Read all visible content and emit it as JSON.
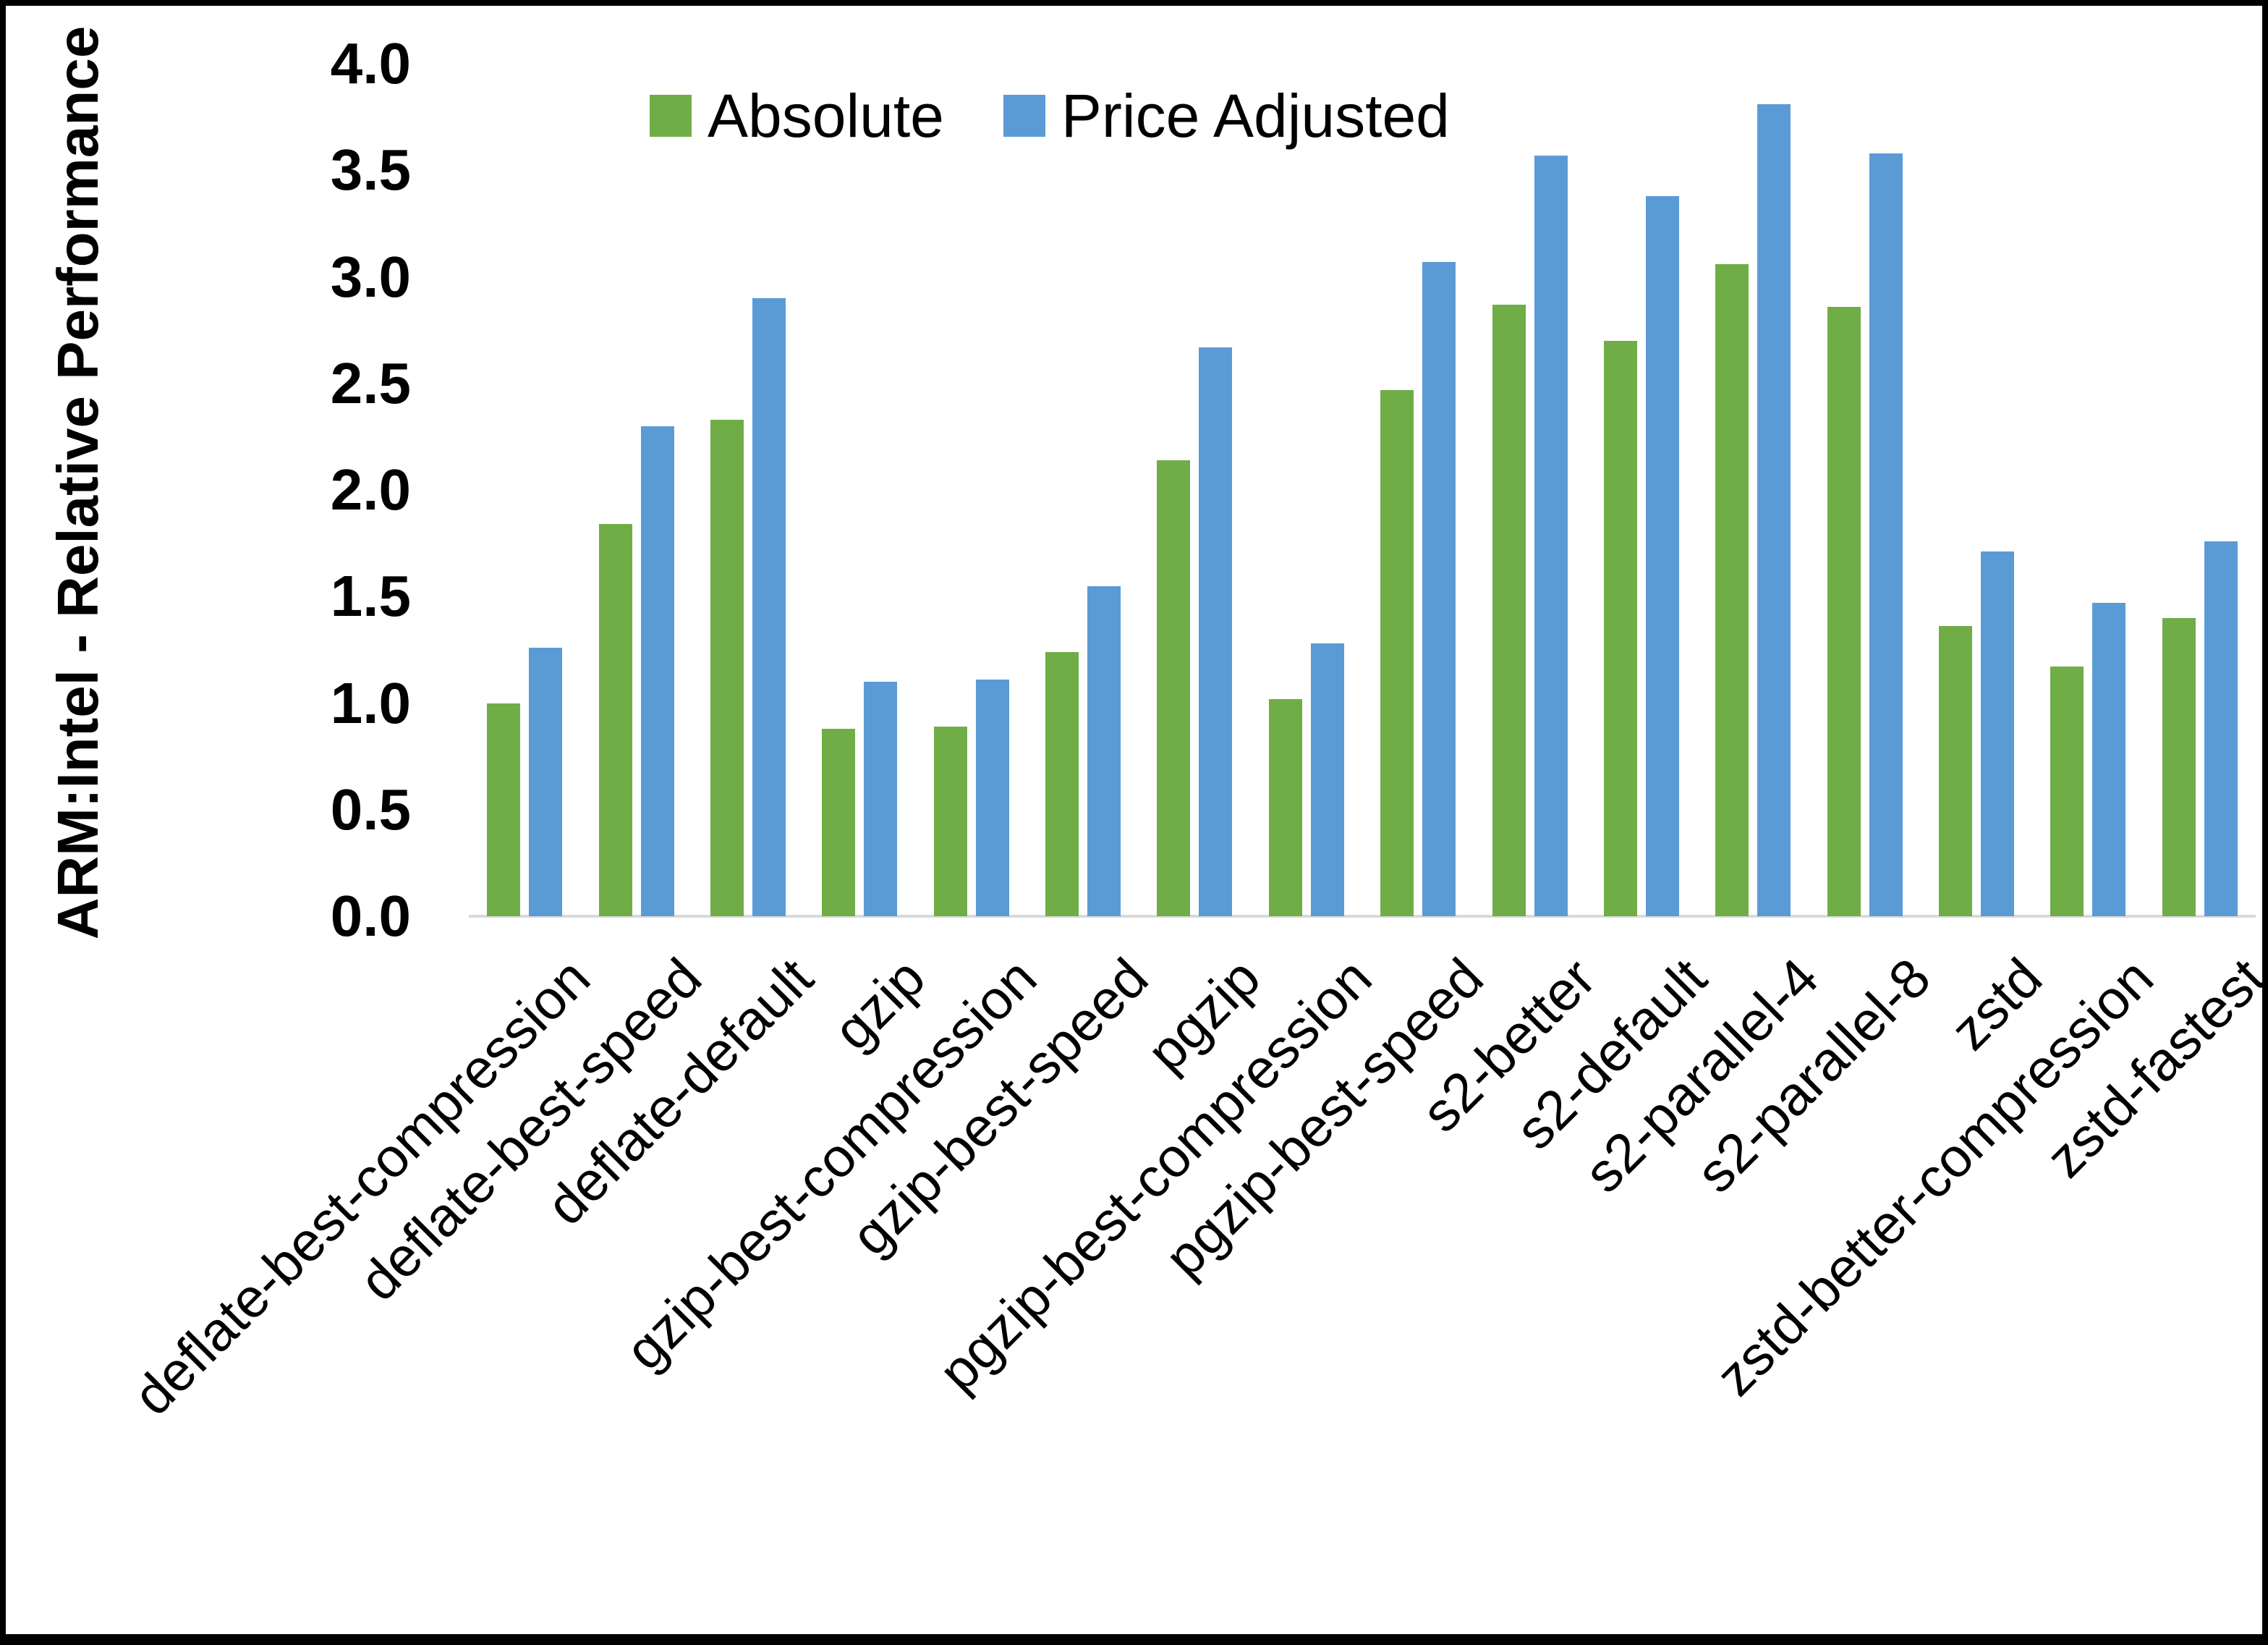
{
  "chart_data": {
    "type": "bar",
    "title": "",
    "ylabel": "ARM:Intel - Relative Performance",
    "xlabel": "",
    "ylim": [
      0.0,
      4.0
    ],
    "ytick_step": 0.5,
    "yticks": [
      "0.0",
      "0.5",
      "1.0",
      "1.5",
      "2.0",
      "2.5",
      "3.0",
      "3.5",
      "4.0"
    ],
    "grid": false,
    "legend_position": "top-center-inside",
    "categories": [
      "deflate-best-compression",
      "deflate-best-speed",
      "deflate-default",
      "gzip",
      "gzip-best-compression",
      "gzip-best-speed",
      "pgzip",
      "pgzip-best-compression",
      "pgzip-best-speed",
      "s2-better",
      "s2-default",
      "s2-parallel-4",
      "s2-parallel-8",
      "zstd",
      "zstd-better-compression",
      "zstd-fastest"
    ],
    "series": [
      {
        "name": "Absolute",
        "color": "#70AD47",
        "values": [
          1.0,
          1.84,
          2.33,
          0.88,
          0.89,
          1.24,
          2.14,
          1.02,
          2.47,
          2.87,
          2.7,
          3.06,
          2.86,
          1.36,
          1.17,
          1.4
        ]
      },
      {
        "name": "Price Adjusted",
        "color": "#5B9BD5",
        "values": [
          1.26,
          2.3,
          2.9,
          1.1,
          1.11,
          1.55,
          2.67,
          1.28,
          3.07,
          3.57,
          3.38,
          3.81,
          3.58,
          1.71,
          1.47,
          1.76
        ]
      }
    ]
  },
  "colors": {
    "background": "#FFFFFF",
    "frame_border": "#000000",
    "axis_line": "#D9D9D9",
    "text": "#000000"
  }
}
